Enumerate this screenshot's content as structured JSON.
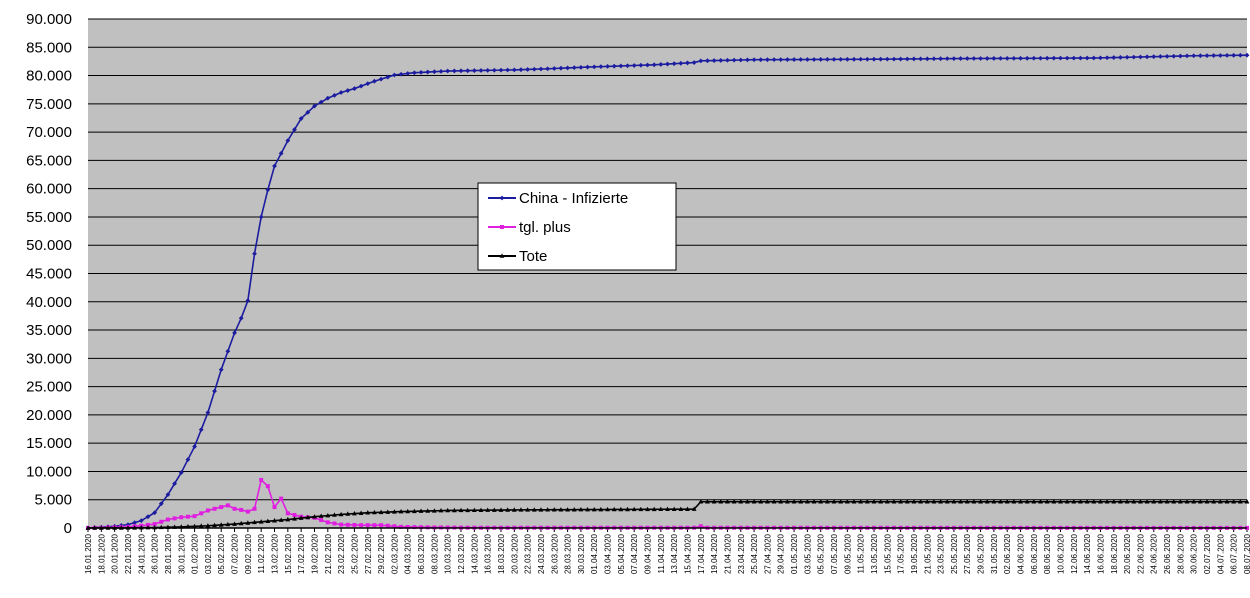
{
  "chart_data": {
    "type": "line",
    "title": "",
    "xlabel": "",
    "ylabel": "",
    "ylim": [
      0,
      90000
    ],
    "grid": true,
    "legend_position": "center",
    "plot_background": "#c0c0c0",
    "y_ticks": [
      "0",
      "5.000",
      "10.000",
      "15.000",
      "20.000",
      "25.000",
      "30.000",
      "35.000",
      "40.000",
      "45.000",
      "50.000",
      "55.000",
      "60.000",
      "65.000",
      "70.000",
      "75.000",
      "80.000",
      "85.000",
      "90.000"
    ],
    "x_start": "2020-01-16",
    "x_end": "2020-07-08",
    "x_tick_step_days": 2,
    "x_tick_labels": [
      "16.01.2020",
      "18.01.2020",
      "20.01.2020",
      "22.01.2020",
      "24.01.2020",
      "26.01.2020",
      "28.01.2020",
      "30.01.2020",
      "01.02.2020",
      "03.02.2020",
      "05.02.2020",
      "07.02.2020",
      "09.02.2020",
      "11.02.2020",
      "13.02.2020",
      "15.02.2020",
      "17.02.2020",
      "19.02.2020",
      "21.02.2020",
      "23.02.2020",
      "25.02.2020",
      "27.02.2020",
      "29.02.2020",
      "02.03.2020",
      "04.03.2020",
      "06.03.2020",
      "08.03.2020",
      "10.03.2020",
      "12.03.2020",
      "14.03.2020",
      "16.03.2020",
      "18.03.2020",
      "20.03.2020",
      "22.03.2020",
      "24.03.2020",
      "26.03.2020",
      "28.03.2020",
      "30.03.2020",
      "01.04.2020",
      "03.04.2020",
      "05.04.2020",
      "07.04.2020",
      "09.04.2020",
      "11.04.2020",
      "13.04.2020",
      "15.04.2020",
      "17.04.2020",
      "19.04.2020",
      "21.04.2020",
      "23.04.2020",
      "25.04.2020",
      "27.04.2020",
      "29.04.2020",
      "01.05.2020",
      "03.05.2020",
      "05.05.2020",
      "07.05.2020",
      "09.05.2020",
      "11.05.2020",
      "13.05.2020",
      "15.05.2020",
      "17.05.2020",
      "19.05.2020",
      "21.05.2020",
      "23.05.2020",
      "25.05.2020",
      "27.05.2020",
      "29.05.2020",
      "31.05.2020",
      "02.06.2020",
      "04.06.2020",
      "06.06.2020",
      "08.06.2020",
      "10.06.2020",
      "12.06.2020",
      "14.06.2020",
      "16.06.2020",
      "18.06.2020",
      "20.06.2020",
      "22.06.2020",
      "24.06.2020",
      "26.06.2020",
      "28.06.2020",
      "30.06.2020",
      "02.07.2020",
      "04.07.2020",
      "06.07.2020",
      "08.07.2020"
    ],
    "series": [
      {
        "name": "China - Infizierte",
        "color": "#1c1ca0",
        "marker": "diamond",
        "points": [
          [
            "2020-01-16",
            0
          ],
          [
            "2020-01-20",
            300
          ],
          [
            "2020-01-22",
            600
          ],
          [
            "2020-01-24",
            1300
          ],
          [
            "2020-01-26",
            2700
          ],
          [
            "2020-01-28",
            5900
          ],
          [
            "2020-01-30",
            9800
          ],
          [
            "2020-02-01",
            14400
          ],
          [
            "2020-02-03",
            20400
          ],
          [
            "2020-02-05",
            28000
          ],
          [
            "2020-02-07",
            34500
          ],
          [
            "2020-02-08",
            37100
          ],
          [
            "2020-02-09",
            40200
          ],
          [
            "2020-02-10",
            48500
          ],
          [
            "2020-02-11",
            55000
          ],
          [
            "2020-02-12",
            59800
          ],
          [
            "2020-02-13",
            64000
          ],
          [
            "2020-02-15",
            68500
          ],
          [
            "2020-02-17",
            72400
          ],
          [
            "2020-02-19",
            74600
          ],
          [
            "2020-02-21",
            76000
          ],
          [
            "2020-02-23",
            77000
          ],
          [
            "2020-02-25",
            77700
          ],
          [
            "2020-02-28",
            79000
          ],
          [
            "2020-03-02",
            80100
          ],
          [
            "2020-03-05",
            80500
          ],
          [
            "2020-03-10",
            80800
          ],
          [
            "2020-03-15",
            80900
          ],
          [
            "2020-03-20",
            81000
          ],
          [
            "2020-03-25",
            81200
          ],
          [
            "2020-03-31",
            81500
          ],
          [
            "2020-04-10",
            81900
          ],
          [
            "2020-04-16",
            82300
          ],
          [
            "2020-04-17",
            82600
          ],
          [
            "2020-04-25",
            82800
          ],
          [
            "2020-05-15",
            82900
          ],
          [
            "2020-05-25",
            83000
          ],
          [
            "2020-06-15",
            83100
          ],
          [
            "2020-06-30",
            83500
          ],
          [
            "2020-07-08",
            83600
          ]
        ]
      },
      {
        "name": "tgl. plus",
        "color": "#e020e0",
        "marker": "square",
        "points": [
          [
            "2020-01-16",
            0
          ],
          [
            "2020-01-22",
            200
          ],
          [
            "2020-01-24",
            400
          ],
          [
            "2020-01-26",
            700
          ],
          [
            "2020-01-28",
            1500
          ],
          [
            "2020-01-30",
            1900
          ],
          [
            "2020-02-01",
            2100
          ],
          [
            "2020-02-03",
            3100
          ],
          [
            "2020-02-05",
            3700
          ],
          [
            "2020-02-06",
            4000
          ],
          [
            "2020-02-07",
            3400
          ],
          [
            "2020-02-08",
            3200
          ],
          [
            "2020-02-09",
            2900
          ],
          [
            "2020-02-10",
            3400
          ],
          [
            "2020-02-11",
            8500
          ],
          [
            "2020-02-12",
            7400
          ],
          [
            "2020-02-13",
            3700
          ],
          [
            "2020-02-14",
            5200
          ],
          [
            "2020-02-15",
            2600
          ],
          [
            "2020-02-17",
            2000
          ],
          [
            "2020-02-19",
            1800
          ],
          [
            "2020-02-21",
            1000
          ],
          [
            "2020-02-23",
            600
          ],
          [
            "2020-02-26",
            500
          ],
          [
            "2020-02-29",
            500
          ],
          [
            "2020-03-03",
            200
          ],
          [
            "2020-03-08",
            100
          ],
          [
            "2020-03-15",
            50
          ],
          [
            "2020-04-16",
            50
          ],
          [
            "2020-04-17",
            300
          ],
          [
            "2020-04-18",
            50
          ],
          [
            "2020-07-08",
            20
          ]
        ]
      },
      {
        "name": "Tote",
        "color": "#000000",
        "marker": "triangle",
        "points": [
          [
            "2020-01-16",
            0
          ],
          [
            "2020-01-22",
            20
          ],
          [
            "2020-01-26",
            80
          ],
          [
            "2020-01-30",
            200
          ],
          [
            "2020-02-03",
            400
          ],
          [
            "2020-02-07",
            700
          ],
          [
            "2020-02-11",
            1100
          ],
          [
            "2020-02-15",
            1500
          ],
          [
            "2020-02-19",
            2000
          ],
          [
            "2020-02-23",
            2400
          ],
          [
            "2020-02-27",
            2700
          ],
          [
            "2020-03-03",
            2900
          ],
          [
            "2020-03-10",
            3100
          ],
          [
            "2020-03-20",
            3200
          ],
          [
            "2020-04-16",
            3340
          ],
          [
            "2020-04-17",
            4640
          ],
          [
            "2020-07-08",
            4640
          ]
        ]
      }
    ]
  }
}
